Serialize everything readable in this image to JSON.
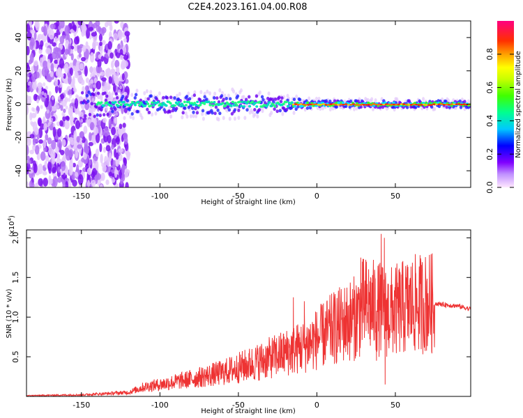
{
  "title": "C2E4.2023.161.04.00.R08",
  "chart_data": [
    {
      "type": "heatmap",
      "title": "C2E4.2023.161.04.00.R08",
      "xlabel": "Height of straight line (km)",
      "ylabel": "Frequency (Hz)",
      "xlim": [
        -185,
        98
      ],
      "ylim": [
        -50,
        50
      ],
      "x_ticks": [
        -150,
        -100,
        -50,
        0,
        50
      ],
      "y_ticks": [
        -40,
        -20,
        0,
        20,
        40
      ],
      "colorbar": {
        "label": "Normalized spectral amplitude",
        "range": [
          0,
          1
        ],
        "ticks": [
          0.0,
          0.2,
          0.4,
          0.6,
          0.8
        ],
        "colors": [
          "#ffe0ff",
          "#c080ff",
          "#8000ff",
          "#0000ff",
          "#00c0ff",
          "#00ff80",
          "#40ff00",
          "#c0ff00",
          "#ffff00",
          "#ffa000",
          "#ff4000",
          "#ff0060",
          "#ff0080"
        ]
      },
      "description_of_signal": {
        "noise_region_x": [
          -185,
          -120
        ],
        "signal_center_hz": 0,
        "band_halfwidth_hz": {
          "-150": 8,
          "-100": 5,
          "-50": 6,
          "-20": 4,
          "0": 2,
          "50": 2,
          "98": 2
        }
      }
    },
    {
      "type": "line",
      "xlabel": "Height of straight line (km)",
      "ylabel": "SNR (10 * v/v)",
      "y_scale_label": "(x10",
      "y_scale_exp": "4",
      "y_scale_close": ")",
      "xlim": [
        -185,
        98
      ],
      "ylim": [
        0,
        2.1
      ],
      "x_ticks": [
        -150,
        -100,
        -50,
        0,
        50
      ],
      "y_ticks": [
        0.5,
        1.0,
        1.5,
        2.0
      ],
      "y_tick_labels": [
        "0.5",
        "1.0",
        "1.5",
        "2.0"
      ],
      "series": [
        {
          "name": "SNR",
          "color": "#ee3333",
          "envelope_x": [
            -185,
            -150,
            -120,
            -110,
            -100,
            -80,
            -60,
            -40,
            -20,
            -10,
            0,
            10,
            25,
            30,
            40,
            45,
            50,
            60,
            70,
            80,
            90,
            98
          ],
          "envelope_y": [
            0.01,
            0.02,
            0.05,
            0.12,
            0.15,
            0.22,
            0.3,
            0.42,
            0.55,
            0.62,
            0.72,
            0.85,
            1.0,
            1.15,
            1.1,
            1.05,
            1.08,
            1.15,
            1.18,
            1.16,
            1.14,
            1.1
          ],
          "spikes": [
            {
              "x": 28,
              "y": 1.75
            },
            {
              "x": 41,
              "y": 2.05
            },
            {
              "x": 43,
              "y": 2.0
            },
            {
              "x": 43.5,
              "y": 0.15
            },
            {
              "x": 38,
              "y": 0.45
            },
            {
              "x": -15,
              "y": 1.25
            },
            {
              "x": -8,
              "y": 1.2
            }
          ]
        }
      ]
    }
  ]
}
